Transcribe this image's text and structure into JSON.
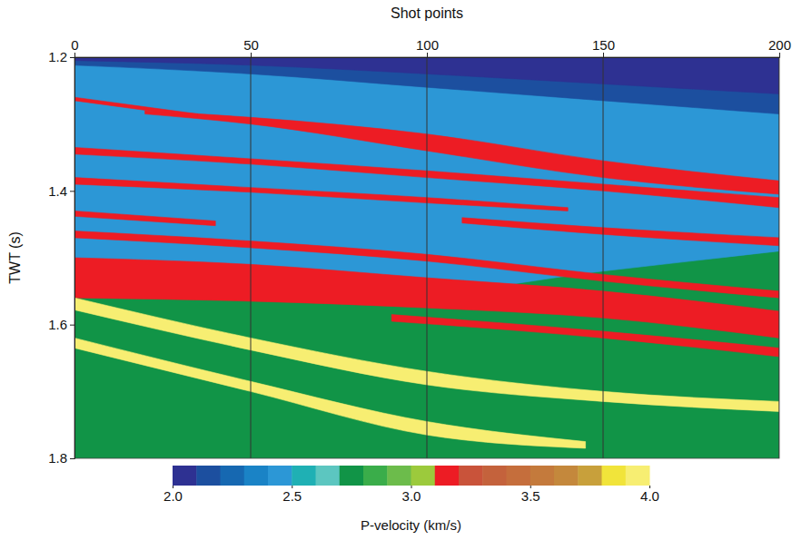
{
  "chart_data": {
    "type": "layered_section",
    "x_label": "Shot points",
    "y_label": "TWT (s)",
    "xlim": [
      0,
      200
    ],
    "ylim": [
      1.2,
      1.8
    ],
    "xticks": [
      0,
      50,
      100,
      150,
      200
    ],
    "yticks": [
      1.2,
      1.4,
      1.6,
      1.8
    ],
    "grid": true,
    "layers": [
      {
        "velocity": 2.75,
        "x": [
          0,
          200
        ],
        "top": [
          1.2,
          1.2
        ],
        "bottom": [
          1.8,
          1.8
        ]
      },
      {
        "velocity": 2.45,
        "x": [
          0,
          50,
          100,
          150,
          200
        ],
        "top": [
          1.2,
          1.2,
          1.2,
          1.2,
          1.2
        ],
        "bottom": [
          1.52,
          1.54,
          1.55,
          1.52,
          1.49
        ]
      },
      {
        "velocity": 2.15,
        "x": [
          0,
          50,
          100,
          150,
          200
        ],
        "top": [
          1.2,
          1.2,
          1.2,
          1.2,
          1.2
        ],
        "bottom": [
          1.212,
          1.225,
          1.245,
          1.265,
          1.285
        ]
      },
      {
        "velocity": 2.05,
        "x": [
          0,
          50,
          100,
          150,
          200
        ],
        "top": [
          1.2,
          1.2,
          1.2,
          1.2,
          1.2
        ],
        "bottom": [
          1.205,
          1.212,
          1.225,
          1.24,
          1.255
        ]
      },
      {
        "velocity": 3.15,
        "x": [
          20,
          50,
          100,
          150,
          200
        ],
        "top": [
          1.28,
          1.29,
          1.315,
          1.355,
          1.385
        ],
        "bottom": [
          1.285,
          1.3,
          1.34,
          1.38,
          1.405
        ]
      },
      {
        "velocity": 3.15,
        "x": [
          0,
          50,
          100,
          150,
          200
        ],
        "top": [
          1.335,
          1.352,
          1.37,
          1.39,
          1.41
        ],
        "bottom": [
          1.345,
          1.36,
          1.38,
          1.4,
          1.425
        ]
      },
      {
        "velocity": 3.15,
        "x": [
          0,
          50,
          100,
          140
        ],
        "top": [
          1.38,
          1.395,
          1.41,
          1.425
        ],
        "bottom": [
          1.39,
          1.402,
          1.418,
          1.43
        ]
      },
      {
        "velocity": 3.15,
        "x": [
          0,
          40
        ],
        "top": [
          1.43,
          1.445
        ],
        "bottom": [
          1.438,
          1.452
        ]
      },
      {
        "velocity": 3.15,
        "x": [
          110,
          150,
          200
        ],
        "top": [
          1.44,
          1.455,
          1.47
        ],
        "bottom": [
          1.448,
          1.465,
          1.482
        ]
      },
      {
        "velocity": 3.15,
        "x": [
          0,
          50,
          100,
          150,
          200
        ],
        "top": [
          1.46,
          1.475,
          1.495,
          1.525,
          1.55
        ],
        "bottom": [
          1.47,
          1.485,
          1.505,
          1.535,
          1.56
        ]
      },
      {
        "velocity": 3.15,
        "x": [
          0,
          50,
          100,
          150,
          200
        ],
        "top": [
          1.5,
          1.51,
          1.53,
          1.55,
          1.58
        ],
        "bottom": [
          1.56,
          1.565,
          1.575,
          1.59,
          1.62
        ]
      },
      {
        "velocity": 3.15,
        "x": [
          90,
          150,
          200
        ],
        "top": [
          1.585,
          1.61,
          1.635
        ],
        "bottom": [
          1.595,
          1.62,
          1.648
        ]
      },
      {
        "velocity": 3.15,
        "x": [
          0,
          35
        ],
        "top": [
          1.26,
          1.285
        ],
        "bottom": [
          1.265,
          1.29
        ]
      },
      {
        "velocity": 3.95,
        "x": [
          0,
          50,
          100,
          150,
          200
        ],
        "top": [
          1.56,
          1.62,
          1.67,
          1.7,
          1.715
        ],
        "bottom": [
          1.578,
          1.638,
          1.69,
          1.715,
          1.73
        ]
      },
      {
        "velocity": 3.95,
        "x": [
          0,
          50,
          100,
          145
        ],
        "top": [
          1.62,
          1.685,
          1.745,
          1.775
        ],
        "bottom": [
          1.635,
          1.7,
          1.765,
          1.785
        ]
      }
    ],
    "colorbar": {
      "label": "P-velocity (km/s)",
      "range": [
        2.0,
        4.0
      ],
      "ticks": [
        {
          "value": 2.0,
          "label": "2.0"
        },
        2.5,
        {
          "value": 3.0,
          "label": "3.0"
        },
        3.5,
        {
          "value": 4.0,
          "label": "4.0"
        }
      ],
      "colors": [
        "#2e3192",
        "#1c4f9f",
        "#1668b1",
        "#1a83c6",
        "#2c97d6",
        "#1fb0b4",
        "#5cc6c0",
        "#119447",
        "#3aad4a",
        "#6cbc4b",
        "#9cca3c",
        "#ed1c24",
        "#c9533a",
        "#c4623c",
        "#c56e3c",
        "#c47a3c",
        "#c4883c",
        "#c8a03b",
        "#f1e43a",
        "#f7ee72"
      ]
    }
  }
}
